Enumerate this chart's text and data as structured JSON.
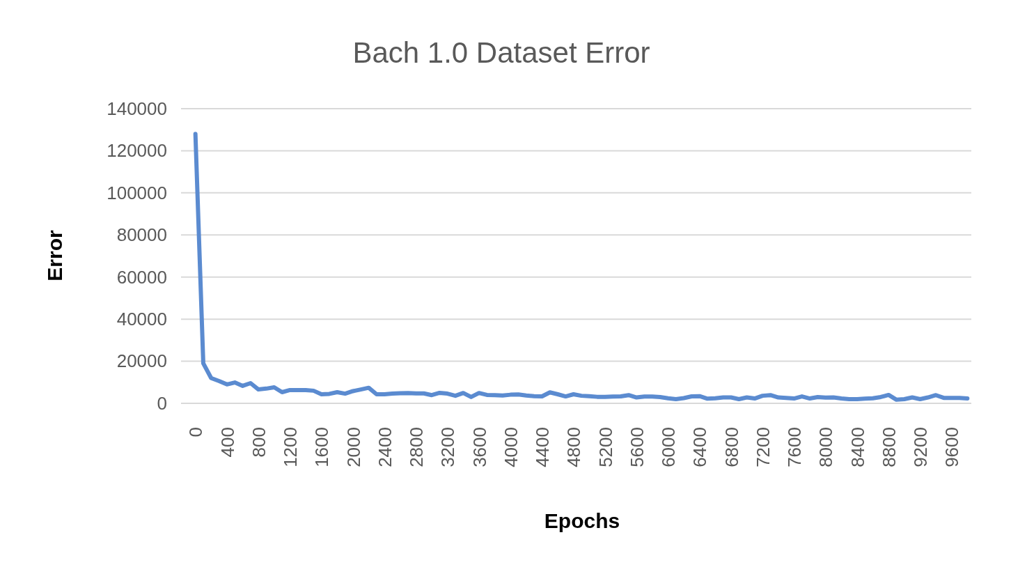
{
  "chart_data": {
    "type": "line",
    "title": "Bach 1.0 Dataset Error",
    "xlabel": "Epochs",
    "ylabel": "Error",
    "categories": [
      "0",
      null,
      null,
      null,
      "400",
      null,
      null,
      null,
      "800",
      null,
      null,
      null,
      "1200",
      null,
      null,
      null,
      "1600",
      null,
      null,
      null,
      "2000",
      null,
      null,
      null,
      "2400",
      null,
      null,
      null,
      "2800",
      null,
      null,
      null,
      "3200",
      null,
      null,
      null,
      "3600",
      null,
      null,
      null,
      "4000",
      null,
      null,
      null,
      "4400",
      null,
      null,
      null,
      "4800",
      null,
      null,
      null,
      "5200",
      null,
      null,
      null,
      "5600",
      null,
      null,
      null,
      "6000",
      null,
      null,
      null,
      "6400",
      null,
      null,
      null,
      "6800",
      null,
      null,
      null,
      "7200",
      null,
      null,
      null,
      "7600",
      null,
      null,
      null,
      "8000",
      null,
      null,
      null,
      "8400",
      null,
      null,
      null,
      "8800",
      null,
      null,
      null,
      "9200",
      null,
      null,
      null,
      "9600",
      null,
      null
    ],
    "series": [
      {
        "color": "#5b8bd0",
        "values": [
          128000,
          19000,
          12000,
          10600,
          9000,
          9900,
          8300,
          9600,
          6600,
          7000,
          7600,
          5300,
          6300,
          6300,
          6300,
          6000,
          4300,
          4500,
          5300,
          4600,
          5800,
          6600,
          7400,
          4300,
          4300,
          4600,
          4800,
          4900,
          4700,
          4700,
          3900,
          5000,
          4600,
          3600,
          4900,
          3000,
          4900,
          4000,
          3900,
          3700,
          4100,
          4200,
          3700,
          3400,
          3300,
          5200,
          4300,
          3300,
          4300,
          3600,
          3400,
          3100,
          3100,
          3200,
          3300,
          3900,
          2800,
          3200,
          3200,
          3000,
          2400,
          2000,
          2500,
          3300,
          3400,
          2200,
          2400,
          2800,
          2800,
          2000,
          2800,
          2300,
          3600,
          3900,
          2800,
          2600,
          2300,
          3300,
          2300,
          3000,
          2700,
          2800,
          2300,
          2000,
          2000,
          2200,
          2400,
          3000,
          4000,
          1700,
          2000,
          2800,
          2000,
          2800,
          3900,
          2600,
          2600,
          2600,
          2300
        ]
      }
    ],
    "ylim": [
      0,
      140000
    ],
    "yticks": [
      0,
      20000,
      40000,
      60000,
      80000,
      100000,
      120000,
      140000
    ],
    "grid": "y",
    "marker": "none",
    "line_style": "solid"
  }
}
